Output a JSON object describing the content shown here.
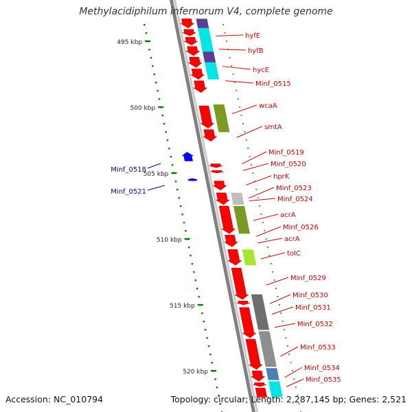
{
  "title": "Methylacidiphilum infernorum V4, complete genome",
  "footer": {
    "accession": "Accession: NC_010794",
    "topology": "Topology: circular; Length: 2,287,145 bp; Genes: 2,521"
  },
  "colors": {
    "forward_gene": "#ff0000",
    "reverse_gene": "#0000ff",
    "right_label": "#cc0000",
    "left_label": "#0000aa",
    "tick": "#007700",
    "backbone_dark": "#808080",
    "backbone_light": "#c8c8c8"
  },
  "scale": {
    "unit": "kbp",
    "ticks": [
      {
        "kbp": 495,
        "label": "495 kbp"
      },
      {
        "kbp": 500,
        "label": "500 kbp"
      },
      {
        "kbp": 505,
        "label": "505 kbp"
      },
      {
        "kbp": 510,
        "label": "510 kbp"
      },
      {
        "kbp": 515,
        "label": "515 kbp"
      },
      {
        "kbp": 520,
        "label": "520 kbp"
      }
    ]
  },
  "genes_forward": [
    {
      "start": 493.3,
      "end": 494.0,
      "arrow": true
    },
    {
      "start": 494.1,
      "end": 494.6,
      "arrow": true
    },
    {
      "start": 494.7,
      "end": 495.3,
      "arrow": true
    },
    {
      "start": 495.4,
      "end": 496.1,
      "arrow": true
    },
    {
      "start": 496.2,
      "end": 497.0,
      "arrow": true
    },
    {
      "start": 497.1,
      "end": 497.9,
      "arrow": true
    },
    {
      "start": 498.0,
      "end": 498.9,
      "arrow": true
    },
    {
      "start": 499.9,
      "end": 501.6,
      "arrow": true
    },
    {
      "start": 501.7,
      "end": 502.6,
      "arrow": true
    },
    {
      "start": 504.3,
      "end": 504.6,
      "arrow": true
    },
    {
      "start": 504.8,
      "end": 505.0,
      "arrow": true
    },
    {
      "start": 505.6,
      "end": 506.3,
      "arrow": true
    },
    {
      "start": 506.5,
      "end": 507.4,
      "arrow": true
    },
    {
      "start": 507.5,
      "end": 509.6,
      "arrow": true
    },
    {
      "start": 509.7,
      "end": 510.6,
      "arrow": true
    },
    {
      "start": 510.8,
      "end": 512.0,
      "arrow": true
    },
    {
      "start": 512.2,
      "end": 514.6,
      "arrow": true
    },
    {
      "start": 514.7,
      "end": 515.0,
      "arrow": true
    },
    {
      "start": 515.2,
      "end": 517.5,
      "arrow": true
    },
    {
      "start": 517.6,
      "end": 519.9,
      "arrow": true
    },
    {
      "start": 520.0,
      "end": 520.8,
      "arrow": true
    },
    {
      "start": 520.9,
      "end": 521.2,
      "arrow": true
    },
    {
      "start": 521.3,
      "end": 522.0,
      "arrow": false
    }
  ],
  "genes_reverse": [
    {
      "start": 503.4,
      "end": 504.1
    },
    {
      "start": 505.4,
      "end": 505.6
    }
  ],
  "cog_blocks": [
    {
      "start": 493.3,
      "end": 497.9,
      "color": "#00e5e5"
    },
    {
      "start": 493.3,
      "end": 494.0,
      "color": "#5a3e96"
    },
    {
      "start": 495.8,
      "end": 496.6,
      "color": "#5a3e96"
    },
    {
      "start": 499.8,
      "end": 501.9,
      "color": "#7a9a22"
    },
    {
      "start": 506.5,
      "end": 507.4,
      "color": "#bebebe"
    },
    {
      "start": 507.5,
      "end": 509.6,
      "color": "#7a9a22"
    },
    {
      "start": 510.8,
      "end": 512.0,
      "color": "#a5e62e"
    },
    {
      "start": 514.2,
      "end": 516.9,
      "color": "#6e6e6e"
    },
    {
      "start": 517.0,
      "end": 519.7,
      "color": "#8e8e8e"
    },
    {
      "start": 519.8,
      "end": 520.7,
      "color": "#4a7fb8"
    },
    {
      "start": 520.8,
      "end": 522.0,
      "color": "#00e5e5"
    }
  ],
  "labels_right": [
    {
      "text": "hyfE",
      "kbp": 494.5
    },
    {
      "text": "hyfB",
      "kbp": 495.5
    },
    {
      "text": "hycE",
      "kbp": 496.8
    },
    {
      "text": "Minf_0515",
      "kbp": 497.9
    },
    {
      "text": "wcaA",
      "kbp": 500.4
    },
    {
      "text": "smtA",
      "kbp": 502.2
    },
    {
      "text": "Minf_0519",
      "kbp": 504.2
    },
    {
      "text": "Minf_0520",
      "kbp": 504.7
    },
    {
      "text": "hprK",
      "kbp": 505.8
    },
    {
      "text": "Minf_0523",
      "kbp": 506.8
    },
    {
      "text": "Minf_0524",
      "kbp": 507.0
    },
    {
      "text": "acrA",
      "kbp": 508.5
    },
    {
      "text": "Minf_0526",
      "kbp": 509.7
    },
    {
      "text": "acrA",
      "kbp": 510.2
    },
    {
      "text": "tolC",
      "kbp": 511.4
    },
    {
      "text": "Minf_0529",
      "kbp": 513.4
    },
    {
      "text": "Minf_0530",
      "kbp": 514.8
    },
    {
      "text": "Minf_0531",
      "kbp": 515.6
    },
    {
      "text": "Minf_0532",
      "kbp": 516.6
    },
    {
      "text": "Minf_0533",
      "kbp": 518.8
    },
    {
      "text": "Minf_0534",
      "kbp": 520.4
    },
    {
      "text": "Minf_0535",
      "kbp": 521.1
    }
  ],
  "labels_left": [
    {
      "text": "Minf_0518",
      "kbp": 503.8
    },
    {
      "text": "Minf_0521",
      "kbp": 505.5
    }
  ]
}
